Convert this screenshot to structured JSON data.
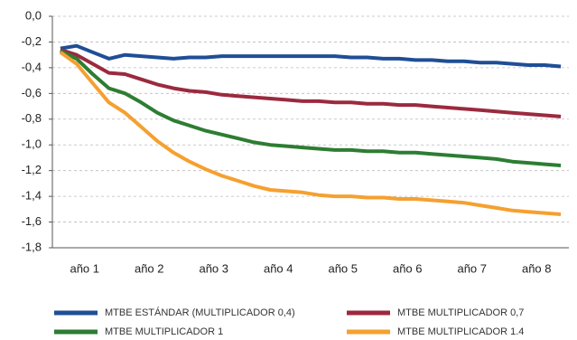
{
  "chart_data": {
    "type": "line",
    "x": [
      1,
      2,
      3,
      4,
      5,
      6,
      7,
      8,
      9,
      10,
      11,
      12,
      13,
      14,
      15,
      16,
      17,
      18,
      19,
      20,
      21,
      22,
      23,
      24,
      25,
      26,
      27,
      28,
      29,
      30,
      31,
      32
    ],
    "xlim": [
      0.5,
      32.5
    ],
    "xticks": [
      {
        "value": 2.5,
        "label": "año 1"
      },
      {
        "value": 6.5,
        "label": "año 2"
      },
      {
        "value": 10.5,
        "label": "año 3"
      },
      {
        "value": 14.5,
        "label": "año 4"
      },
      {
        "value": 18.5,
        "label": "año 5"
      },
      {
        "value": 22.5,
        "label": "año 6"
      },
      {
        "value": 26.5,
        "label": "año 7"
      },
      {
        "value": 30.5,
        "label": "año 8"
      }
    ],
    "ylim": [
      -1.8,
      0
    ],
    "yticks": [
      {
        "value": 0,
        "label": "0,0"
      },
      {
        "value": -0.2,
        "label": "-0,2"
      },
      {
        "value": -0.4,
        "label": "-0,4"
      },
      {
        "value": -0.6,
        "label": "-0,6"
      },
      {
        "value": -0.8,
        "label": "-0,8"
      },
      {
        "value": -1.0,
        "label": "-1,0"
      },
      {
        "value": -1.2,
        "label": "-1,2"
      },
      {
        "value": -1.4,
        "label": "-1,4"
      },
      {
        "value": -1.6,
        "label": "-1,6"
      },
      {
        "value": -1.8,
        "label": "-1,8"
      }
    ],
    "grid": true,
    "legend": "bottom",
    "series": [
      {
        "name": "MTBE ESTÁNDAR (MULTIPLICADOR 0,4)",
        "color": "#1f4e96",
        "values": [
          -0.25,
          -0.23,
          -0.28,
          -0.33,
          -0.3,
          -0.31,
          -0.32,
          -0.33,
          -0.32,
          -0.32,
          -0.31,
          -0.31,
          -0.31,
          -0.31,
          -0.31,
          -0.31,
          -0.31,
          -0.31,
          -0.32,
          -0.32,
          -0.33,
          -0.33,
          -0.34,
          -0.34,
          -0.35,
          -0.35,
          -0.36,
          -0.36,
          -0.37,
          -0.38,
          -0.38,
          -0.39
        ]
      },
      {
        "name": "MTBE MULTIPLICADOR 0,7",
        "color": "#9b2a3e",
        "values": [
          -0.26,
          -0.3,
          -0.37,
          -0.44,
          -0.45,
          -0.49,
          -0.53,
          -0.56,
          -0.58,
          -0.59,
          -0.61,
          -0.62,
          -0.63,
          -0.64,
          -0.65,
          -0.66,
          -0.66,
          -0.67,
          -0.67,
          -0.68,
          -0.68,
          -0.69,
          -0.69,
          -0.7,
          -0.71,
          -0.72,
          -0.73,
          -0.74,
          -0.75,
          -0.76,
          -0.77,
          -0.78
        ]
      },
      {
        "name": "MTBE MULTIPLICADOR 1",
        "color": "#2d7d32",
        "values": [
          -0.27,
          -0.33,
          -0.45,
          -0.56,
          -0.6,
          -0.67,
          -0.75,
          -0.81,
          -0.85,
          -0.89,
          -0.92,
          -0.95,
          -0.98,
          -1.0,
          -1.01,
          -1.02,
          -1.03,
          -1.04,
          -1.04,
          -1.05,
          -1.05,
          -1.06,
          -1.06,
          -1.07,
          -1.08,
          -1.09,
          -1.1,
          -1.11,
          -1.13,
          -1.14,
          -1.15,
          -1.16
        ]
      },
      {
        "name": "MTBE MULTIPLICADOR 1.4",
        "color": "#f5a030",
        "values": [
          -0.28,
          -0.37,
          -0.52,
          -0.67,
          -0.75,
          -0.86,
          -0.97,
          -1.06,
          -1.13,
          -1.19,
          -1.24,
          -1.28,
          -1.32,
          -1.35,
          -1.36,
          -1.37,
          -1.39,
          -1.4,
          -1.4,
          -1.41,
          -1.41,
          -1.42,
          -1.42,
          -1.43,
          -1.44,
          -1.45,
          -1.47,
          -1.49,
          -1.51,
          -1.52,
          -1.53,
          -1.54
        ]
      }
    ]
  }
}
